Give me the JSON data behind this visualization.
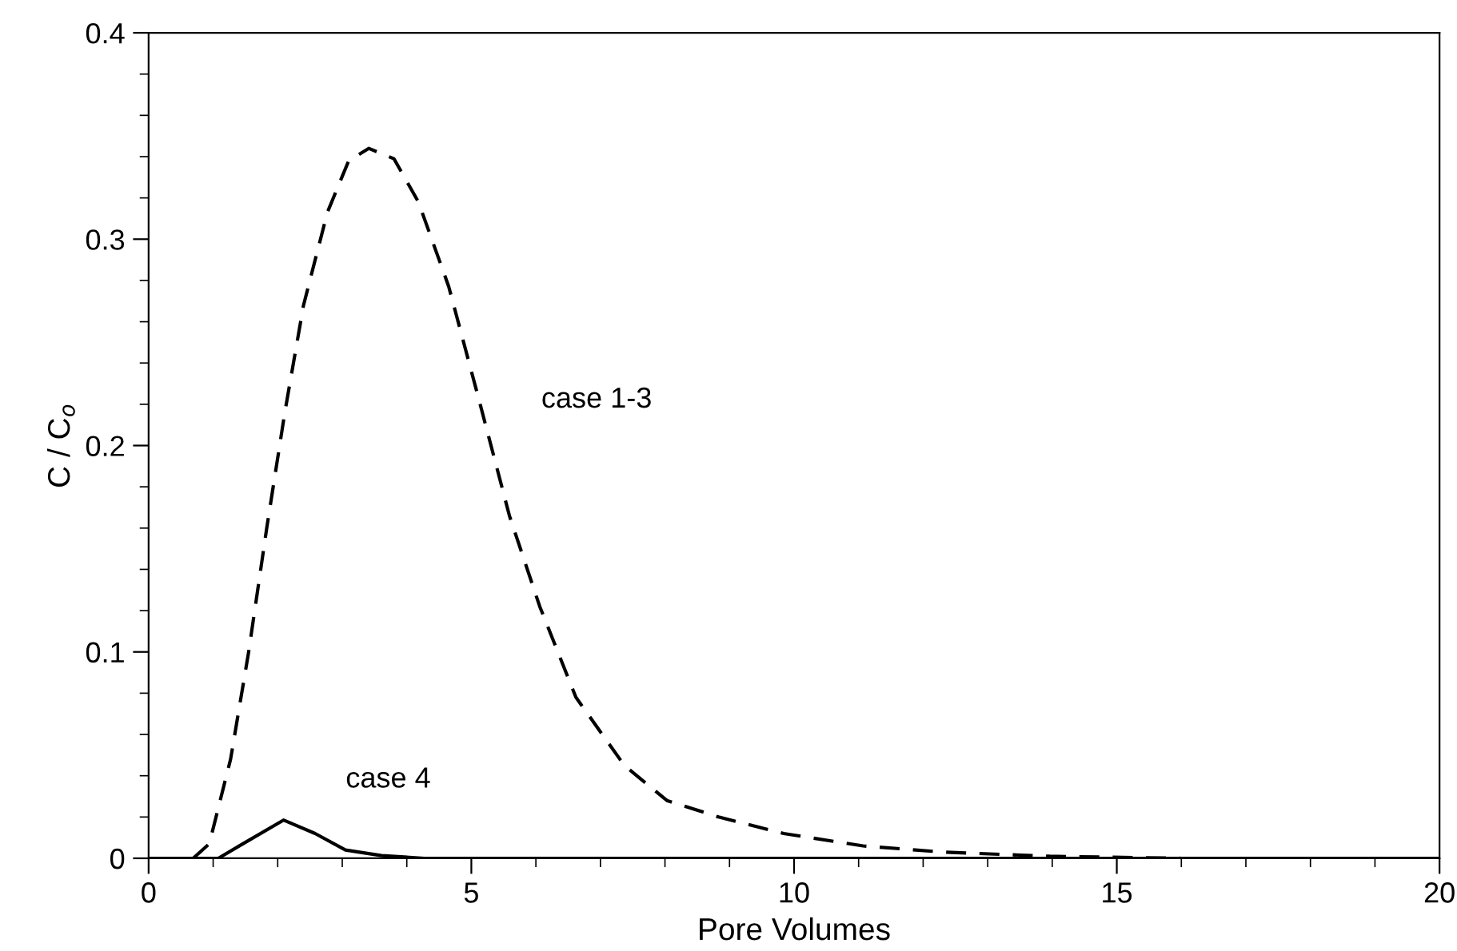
{
  "chart_data": {
    "type": "line",
    "xlabel": "Pore Volumes",
    "ylabel": "C / C$_{o}$",
    "xlim": [
      0,
      20
    ],
    "ylim": [
      0,
      0.4
    ],
    "xticks": [
      0,
      5,
      10,
      15,
      20
    ],
    "yticks": [
      0,
      0.1,
      0.2,
      0.3,
      0.4
    ],
    "grid": false,
    "marker": "none",
    "series": [
      {
        "name": "case 1-3",
        "color": "#000000",
        "line_style": "dashed",
        "x": [
          0.69,
          0.94,
          1.27,
          1.55,
          1.83,
          2.11,
          2.4,
          2.77,
          3.1,
          3.41,
          3.8,
          4.18,
          4.65,
          5.12,
          5.59,
          6.06,
          6.62,
          7.37,
          8.03,
          8.83,
          9.84,
          11.07,
          12.3,
          13.96,
          16,
          20
        ],
        "values": [
          0,
          0.007,
          0.048,
          0.1,
          0.16,
          0.216,
          0.268,
          0.313,
          0.338,
          0.344,
          0.339,
          0.318,
          0.277,
          0.222,
          0.166,
          0.122,
          0.078,
          0.045,
          0.028,
          0.02,
          0.012,
          0.006,
          0.003,
          0.001,
          0,
          0
        ]
      },
      {
        "name": "case 4",
        "color": "#000000",
        "line_style": "solid",
        "x": [
          0,
          1.08,
          1.46,
          2.09,
          2.58,
          3.05,
          3.61,
          4.27,
          20
        ],
        "values": [
          0,
          0,
          0.007,
          0.0185,
          0.012,
          0.004,
          0.0013,
          0,
          0
        ]
      }
    ]
  }
}
